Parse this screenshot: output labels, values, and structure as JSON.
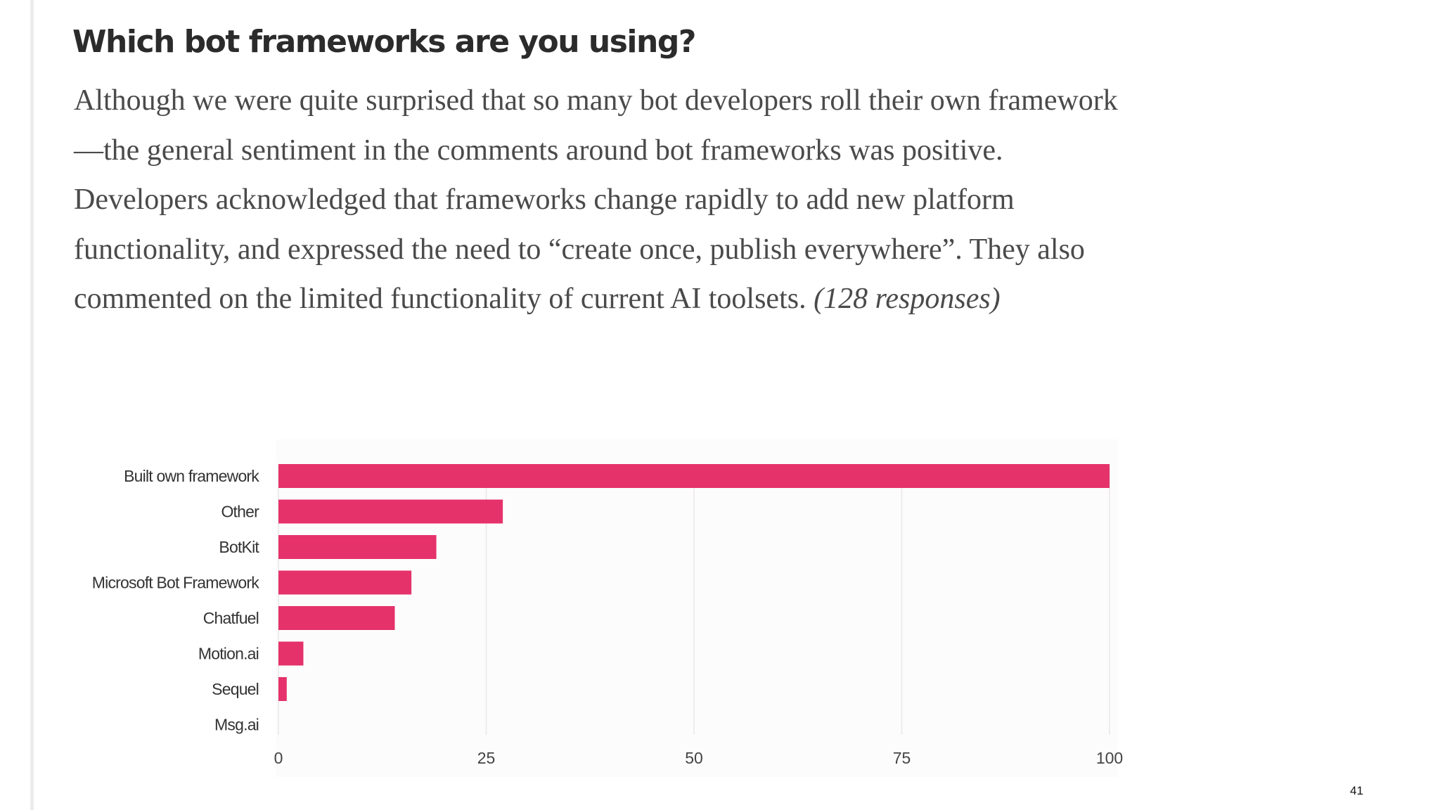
{
  "heading": "Which bot frameworks are you using?",
  "paragraph": {
    "text": "Although we were quite surprised that so many bot developers roll their own framework—the general sentiment in the comments around bot frameworks was positive. Developers acknowledged that frameworks change rapidly to add new platform functionality, and expressed the need to “create once, publish everywhere”. They also commented on the limited functionality of current AI toolsets.",
    "responses": "(128 responses)"
  },
  "page_number": "41",
  "chart_data": {
    "type": "bar",
    "orientation": "horizontal",
    "categories": [
      "Built own framework",
      "Other",
      "BotKit",
      "Microsoft Bot Framework",
      "Chatfuel",
      "Motion.ai",
      "Sequel",
      "Msg.ai"
    ],
    "values": [
      100,
      27,
      19,
      16,
      14,
      3,
      1,
      0
    ],
    "xlim": [
      0,
      100
    ],
    "xticks": [
      0,
      25,
      50,
      75,
      100
    ],
    "grid": true,
    "bar_color": "#e5326a",
    "grid_color": "#e9e6ea"
  }
}
